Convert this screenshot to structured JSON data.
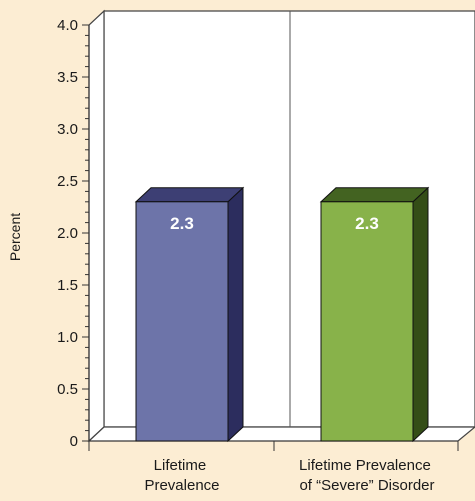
{
  "chart_data": {
    "type": "bar",
    "categories": [
      [
        "Lifetime",
        "Prevalence"
      ],
      [
        "Lifetime Prevalence",
        "of “Severe” Disorder"
      ]
    ],
    "values": [
      2.3,
      2.3
    ],
    "data_labels": [
      "2.3",
      "2.3"
    ],
    "ylabel": "Percent",
    "ylim": [
      0,
      4.0
    ],
    "yticks": [
      "0",
      "0.5",
      "1.0",
      "1.5",
      "2.0",
      "2.5",
      "3.0",
      "3.5",
      "4.0"
    ],
    "yticks_values": [
      0,
      0.5,
      1.0,
      1.5,
      2.0,
      2.5,
      3.0,
      3.5,
      4.0
    ],
    "grid": false,
    "legend": "none",
    "colors": {
      "background": "#fcedd3",
      "plot_area": "#ffffff",
      "bars": [
        {
          "front": "#6d74a9",
          "side": "#2c2d5e",
          "top": "#3d3f74"
        },
        {
          "front": "#88b24a",
          "side": "#344d17",
          "top": "#436321"
        }
      ]
    }
  }
}
